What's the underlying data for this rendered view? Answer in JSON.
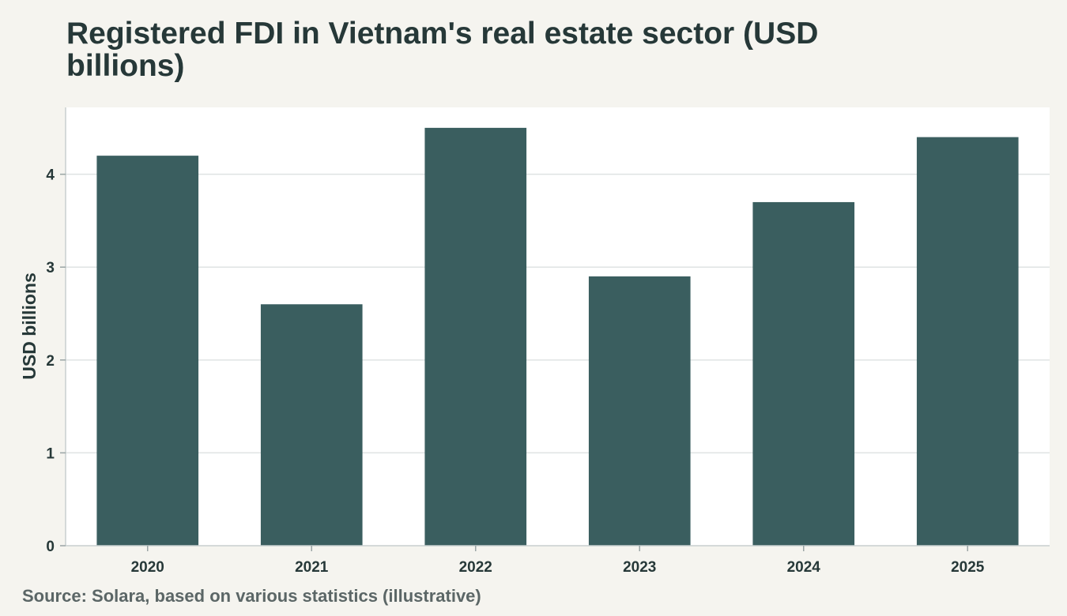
{
  "chart_data": {
    "type": "bar",
    "title": "Registered FDI in Vietnam's real estate sector (USD billions)",
    "xlabel": "",
    "ylabel": "USD billions",
    "categories": [
      "2020",
      "2021",
      "2022",
      "2023",
      "2024",
      "2025"
    ],
    "values": [
      4.2,
      2.6,
      4.5,
      2.9,
      3.7,
      4.4
    ],
    "ylim": [
      0,
      4.72
    ],
    "yticks": [
      0,
      1,
      2,
      3,
      4
    ],
    "grid": true,
    "legend": "none",
    "bar_color": "#3a5e5f",
    "source": "Source: Solara, based on various statistics (illustrative)"
  },
  "colors": {
    "background": "#f5f4ef",
    "plot_background": "#ffffff",
    "gridline": "#dfe3e3",
    "text": "#263838"
  }
}
